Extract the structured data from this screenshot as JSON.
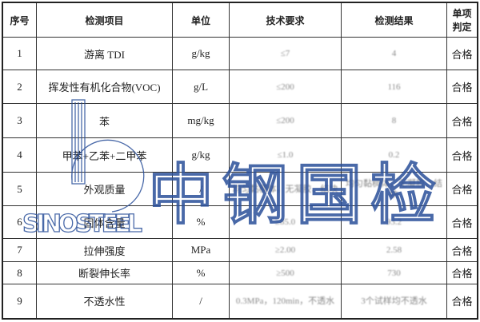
{
  "headers": [
    "序号",
    "检测项目",
    "单位",
    "技术要求",
    "检测结果",
    "单项判定"
  ],
  "rows": [
    {
      "no": "1",
      "item": "游离 TDI",
      "unit": "g/kg",
      "req": "≤7",
      "result": "4",
      "verdict": "合格"
    },
    {
      "no": "2",
      "item": "挥发性有机化合物(VOC)",
      "unit": "g/L",
      "req": "≤200",
      "result": "116",
      "verdict": "合格"
    },
    {
      "no": "3",
      "item": "苯",
      "unit": "mg/kg",
      "req": "≤200",
      "result": "8",
      "verdict": "合格"
    },
    {
      "no": "4",
      "item": "甲苯+乙苯+二甲苯",
      "unit": "g/kg",
      "req": "≤1.0",
      "result": "0.2",
      "verdict": "合格"
    },
    {
      "no": "5",
      "item": "外观质量",
      "unit": "/",
      "req": "均匀黏稠体，无凝胶、结块",
      "result": "均匀黏稠体，无凝胶、结块",
      "verdict": "合格"
    },
    {
      "no": "6",
      "item": "固体含量",
      "unit": "%",
      "req": "≥85.0",
      "result": "93.2",
      "verdict": "合格"
    },
    {
      "no": "7",
      "item": "拉伸强度",
      "unit": "MPa",
      "req": "≥2.00",
      "result": "2.58",
      "verdict": "合格"
    },
    {
      "no": "8",
      "item": "断裂伸长率",
      "unit": "%",
      "req": "≥500",
      "result": "730",
      "verdict": "合格"
    },
    {
      "no": "9",
      "item": "不透水性",
      "unit": "/",
      "req": "0.3MPa，120min，不透水",
      "result": "3个试样均不透水",
      "verdict": "合格"
    }
  ],
  "watermark": {
    "brand": "SINOSTEEL",
    "text": "中钢国检",
    "color": "#2a4f9a"
  }
}
